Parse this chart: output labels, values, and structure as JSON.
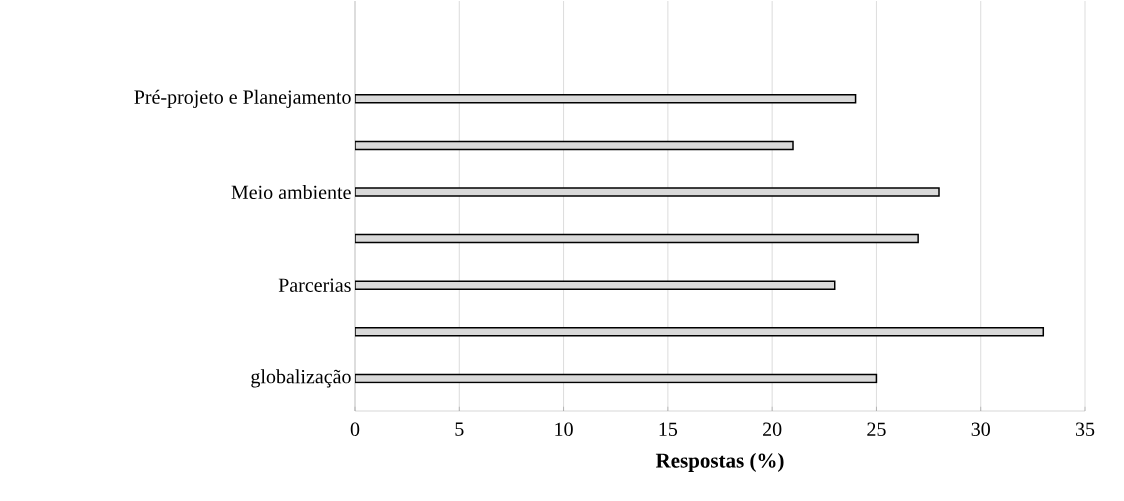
{
  "chart_data": {
    "type": "bar",
    "orientation": "horizontal",
    "xlabel": "Respostas (%)",
    "categories": [
      "Pré-projeto e Planejamento",
      null,
      "Meio ambiente",
      null,
      "Parcerias",
      null,
      "globalização"
    ],
    "values": [
      24,
      21,
      28,
      27,
      23,
      33,
      25
    ],
    "color": "#d9d9d9",
    "xlim": [
      0,
      35
    ],
    "xticks": [
      0,
      5,
      10,
      15,
      20,
      25,
      30,
      35
    ],
    "grid": "x"
  }
}
